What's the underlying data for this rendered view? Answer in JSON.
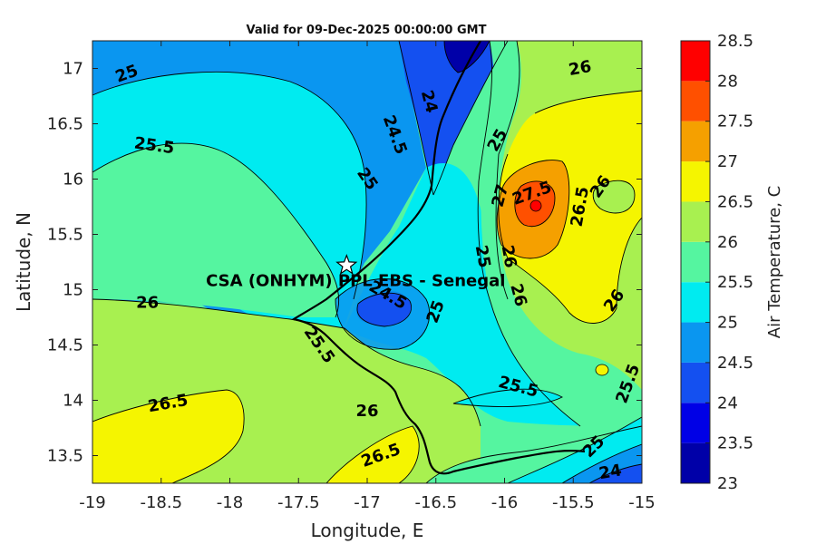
{
  "chart_data": {
    "type": "contour",
    "title": "Valid for 09-Dec-2025 00:00:00 GMT",
    "xlabel": "Longitude, E",
    "ylabel": "Latitude, N",
    "xlim": [
      -19,
      -15
    ],
    "ylim": [
      13.25,
      17.25
    ],
    "xticks": [
      "-19",
      "-18.5",
      "-18",
      "-17.5",
      "-17",
      "-16.5",
      "-16",
      "-15.5",
      "-15"
    ],
    "yticks": [
      "13.5",
      "14",
      "14.5",
      "15",
      "15.5",
      "16",
      "16.5",
      "17"
    ],
    "colorbar": {
      "label": "Air Temperature, C",
      "levels": [
        23,
        23.5,
        24,
        24.5,
        25,
        25.5,
        26,
        26.5,
        27,
        27.5,
        28,
        28.5
      ],
      "tick_labels": [
        "23",
        "23.5",
        "24",
        "24.5",
        "25",
        "25.5",
        "26",
        "26.5",
        "27",
        "27.5",
        "28",
        "28.5"
      ],
      "colors": [
        "#0000a8",
        "#0000e6",
        "#1450f0",
        "#0a96f0",
        "#00ebf0",
        "#55f5a0",
        "#a8f050",
        "#f5f500",
        "#f5a000",
        "#ff5000",
        "#ff0000",
        "#b40000"
      ]
    },
    "site": {
      "label": "CSA (ONHYM) PPL EBS  - Senegal",
      "lon": -17.15,
      "lat": 15.22
    },
    "contour_labels": [
      {
        "text": "25",
        "lon": -18.75,
        "lat": 16.95,
        "rot": -20
      },
      {
        "text": "25.5",
        "lon": -18.55,
        "lat": 16.3,
        "rot": 8
      },
      {
        "text": "25",
        "lon": -17.0,
        "lat": 16.0,
        "rot": 55
      },
      {
        "text": "24.5",
        "lon": -16.8,
        "lat": 16.4,
        "rot": 70
      },
      {
        "text": "24",
        "lon": -16.55,
        "lat": 16.7,
        "rot": 75
      },
      {
        "text": "25",
        "lon": -16.05,
        "lat": 16.35,
        "rot": -60
      },
      {
        "text": "26",
        "lon": -15.45,
        "lat": 17.0,
        "rot": -10
      },
      {
        "text": "27",
        "lon": -16.03,
        "lat": 15.85,
        "rot": -75
      },
      {
        "text": "27.5",
        "lon": -15.8,
        "lat": 15.87,
        "rot": -20
      },
      {
        "text": "26",
        "lon": -15.3,
        "lat": 15.93,
        "rot": -55
      },
      {
        "text": "26.5",
        "lon": -15.45,
        "lat": 15.75,
        "rot": -80
      },
      {
        "text": "26",
        "lon": -15.2,
        "lat": 14.9,
        "rot": -55
      },
      {
        "text": "26",
        "lon": -18.6,
        "lat": 14.88,
        "rot": 0
      },
      {
        "text": "24.5",
        "lon": -16.85,
        "lat": 14.95,
        "rot": 30
      },
      {
        "text": "25",
        "lon": -16.5,
        "lat": 14.8,
        "rot": -70
      },
      {
        "text": "25",
        "lon": -16.16,
        "lat": 15.3,
        "rot": 80
      },
      {
        "text": "26",
        "lon": -15.97,
        "lat": 15.3,
        "rot": 80
      },
      {
        "text": "26",
        "lon": -15.9,
        "lat": 14.95,
        "rot": 75
      },
      {
        "text": "25.5",
        "lon": -17.35,
        "lat": 14.5,
        "rot": 55
      },
      {
        "text": "26.5",
        "lon": -18.45,
        "lat": 13.97,
        "rot": -10
      },
      {
        "text": "26",
        "lon": -17.0,
        "lat": 13.9,
        "rot": 0
      },
      {
        "text": "25.5",
        "lon": -15.9,
        "lat": 14.12,
        "rot": 15
      },
      {
        "text": "25.5",
        "lon": -15.1,
        "lat": 14.15,
        "rot": -70
      },
      {
        "text": "26.5",
        "lon": -16.9,
        "lat": 13.5,
        "rot": -20
      },
      {
        "text": "25",
        "lon": -15.35,
        "lat": 13.58,
        "rot": -45
      },
      {
        "text": "24",
        "lon": -15.23,
        "lat": 13.35,
        "rot": -10
      }
    ]
  }
}
